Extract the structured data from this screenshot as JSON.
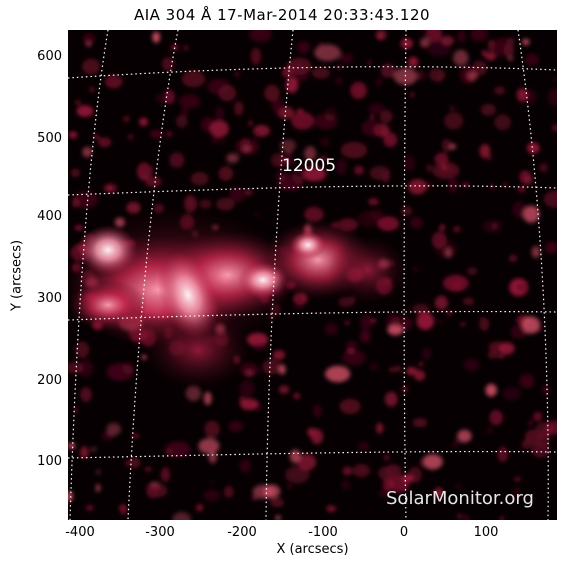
{
  "title": "AIA 304 Å 17-Mar-2014  20:33:43.120",
  "xlabel": "X (arcsecs)",
  "ylabel": "Y (arcsecs)",
  "xticks": [
    "-400",
    "-300",
    "-200",
    "-100",
    "0",
    "100"
  ],
  "yticks": [
    "600",
    "500",
    "400",
    "300",
    "200",
    "100"
  ],
  "active_region": "12005",
  "watermark": "SolarMonitor.org",
  "colors": {
    "background": "#000000",
    "plasma": "#c8284f",
    "bright": "#ffc8d0",
    "grid": "#ffffff"
  }
}
